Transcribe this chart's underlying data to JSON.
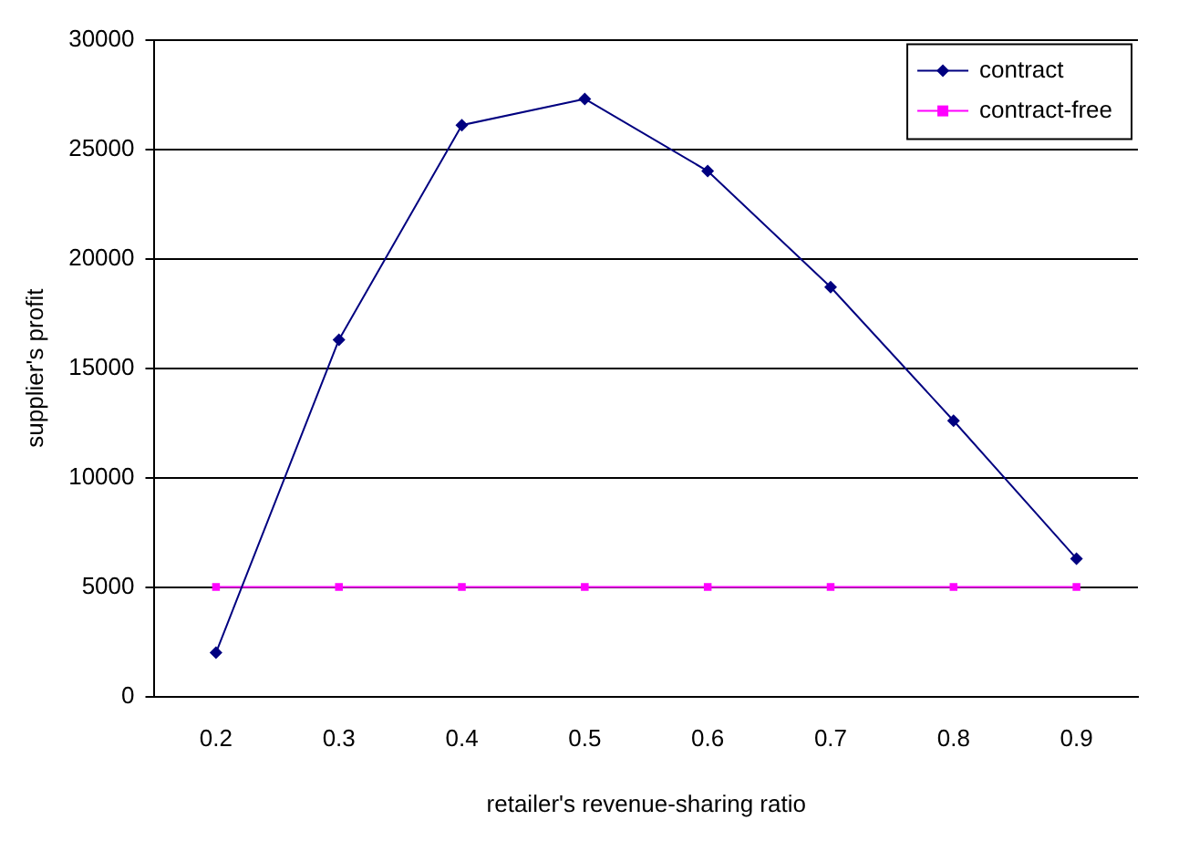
{
  "chart_data": {
    "type": "line",
    "xlabel": "retailer's revenue-sharing ratio",
    "ylabel": "supplier's profit",
    "categories": [
      "0.2",
      "0.3",
      "0.4",
      "0.5",
      "0.6",
      "0.7",
      "0.8",
      "0.9"
    ],
    "series": [
      {
        "name": "contract",
        "color": "#000080",
        "marker": "diamond",
        "values": [
          2000,
          16300,
          26100,
          27300,
          24000,
          18700,
          12600,
          6300
        ]
      },
      {
        "name": "contract-free",
        "color": "#ff00ff",
        "marker": "square",
        "values": [
          5000,
          5000,
          5000,
          5000,
          5000,
          5000,
          5000,
          5000
        ]
      }
    ],
    "ylim": [
      0,
      30000
    ],
    "yticks": [
      0,
      5000,
      10000,
      15000,
      20000,
      25000,
      30000
    ],
    "grid": "y",
    "legend": "top right",
    "line_style": "solid"
  }
}
